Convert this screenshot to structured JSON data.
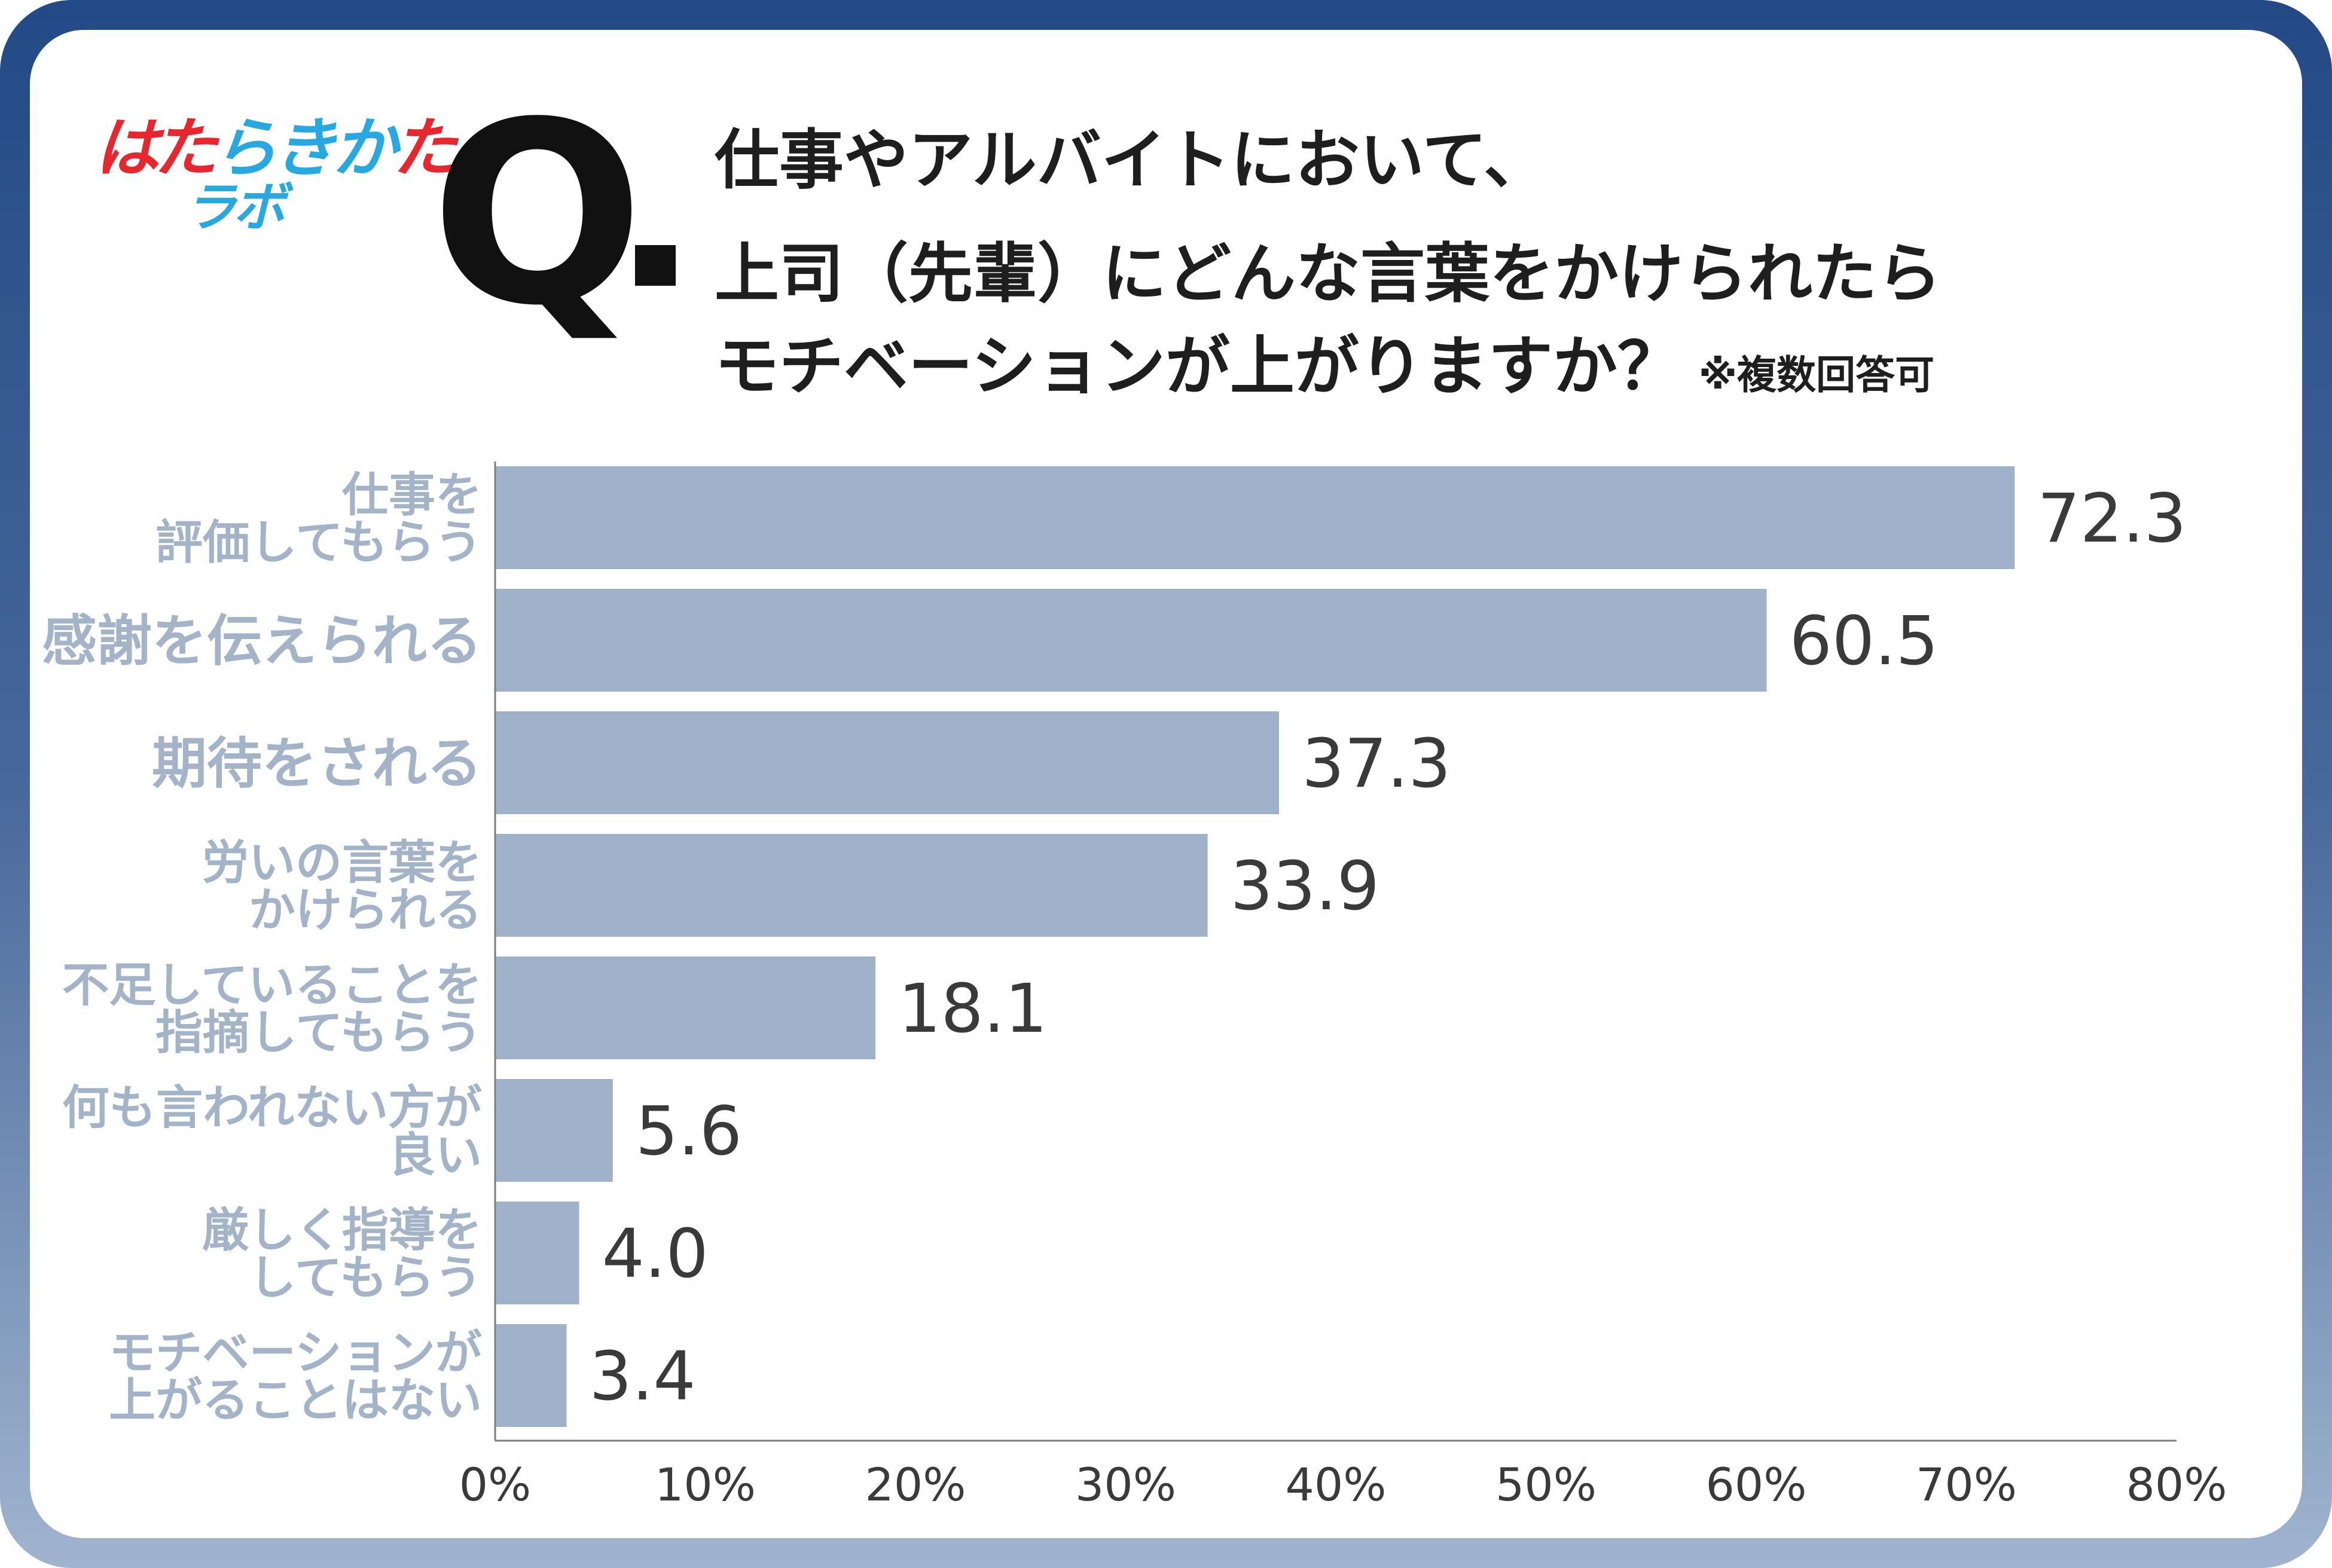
{
  "logo": {
    "line1": "はたらきかた",
    "line2": "ラボ",
    "colors": [
      "#e8262d",
      "#e8262d",
      "#27a8e0",
      "#27a8e0",
      "#27a8e0",
      "#e8262d"
    ],
    "line2_color": "#27a8e0"
  },
  "question": {
    "mark": "Q",
    "lines": [
      "仕事やアルバイトにおいて、",
      "上司（先輩）にどんな言葉をかけられたら",
      "モチベーションが上がりますか？"
    ],
    "note": "※複数回答可"
  },
  "chart_data": {
    "type": "bar",
    "orientation": "horizontal",
    "categories": [
      [
        "仕事を",
        "評価してもらう"
      ],
      [
        "感謝を伝えられる"
      ],
      [
        "期待をされる"
      ],
      [
        "労いの言葉を",
        "かけられる"
      ],
      [
        "不足していることを",
        "指摘してもらう"
      ],
      [
        "何も言われない方が",
        "良い"
      ],
      [
        "厳しく指導を",
        "してもらう"
      ],
      [
        "モチベーションが",
        "上がることはない"
      ]
    ],
    "values": [
      72.3,
      60.5,
      37.3,
      33.9,
      18.1,
      5.6,
      4.0,
      3.4
    ],
    "value_labels": [
      "72.3",
      "60.5",
      "37.3",
      "33.9",
      "18.1",
      "5.6",
      "4.0",
      "3.4"
    ],
    "xlim": [
      0,
      80
    ],
    "x_ticks": [
      "0%",
      "10%",
      "20%",
      "30%",
      "40%",
      "50%",
      "60%",
      "70%",
      "80%"
    ],
    "bar_color": "#a0b2ca",
    "label_color": "#a3b4c8",
    "grid": false
  }
}
